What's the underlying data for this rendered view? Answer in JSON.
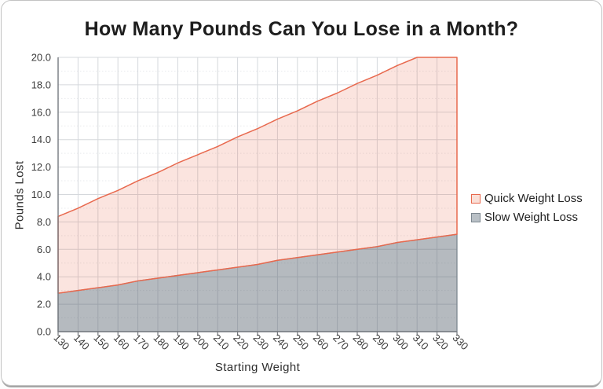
{
  "chart_data": {
    "type": "area",
    "title": "How Many Pounds Can You Lose in a Month?",
    "xlabel": "Starting Weight",
    "ylabel": "Pounds Lost",
    "x": [
      130,
      140,
      150,
      160,
      170,
      180,
      190,
      200,
      210,
      220,
      230,
      240,
      250,
      260,
      270,
      280,
      290,
      300,
      310,
      320,
      330
    ],
    "xlim": [
      130,
      330
    ],
    "ylim": [
      0,
      20
    ],
    "y_major_step": 2,
    "y_minor_step": 1,
    "y_tick_labels": [
      "0.0",
      "2.0",
      "4.0",
      "6.0",
      "8.0",
      "10.0",
      "12.0",
      "14.0",
      "16.0",
      "18.0",
      "20.0"
    ],
    "grid": true,
    "legend_position": "right",
    "clip_to_ylim": true,
    "series": [
      {
        "name": "Quick Weight Loss",
        "values": [
          8.4,
          9.0,
          9.7,
          10.3,
          11.0,
          11.6,
          12.3,
          12.9,
          13.5,
          14.2,
          14.8,
          15.5,
          16.1,
          16.8,
          17.4,
          18.1,
          18.7,
          19.4,
          20.0,
          20.6,
          21.3
        ],
        "line_color": "#e8694e",
        "fill_color": "rgba(232,105,78,0.18)",
        "swatch_fill": "#fadfd7"
      },
      {
        "name": "Slow Weight Loss",
        "values": [
          2.8,
          3.0,
          3.2,
          3.4,
          3.7,
          3.9,
          4.1,
          4.3,
          4.5,
          4.7,
          4.9,
          5.2,
          5.4,
          5.6,
          5.8,
          6.0,
          6.2,
          6.5,
          6.7,
          6.9,
          7.1
        ],
        "line_color": "#7d8790",
        "fill_color": "rgba(90,102,112,0.45)",
        "swatch_fill": "#b9c0c6"
      }
    ]
  },
  "colors": {
    "grid_major": "#d5d8dc",
    "grid_minor": "#e7e9ec",
    "axis": "#75797f",
    "tick_text": "#3b3b3b",
    "title_text": "#1d1d1d"
  }
}
